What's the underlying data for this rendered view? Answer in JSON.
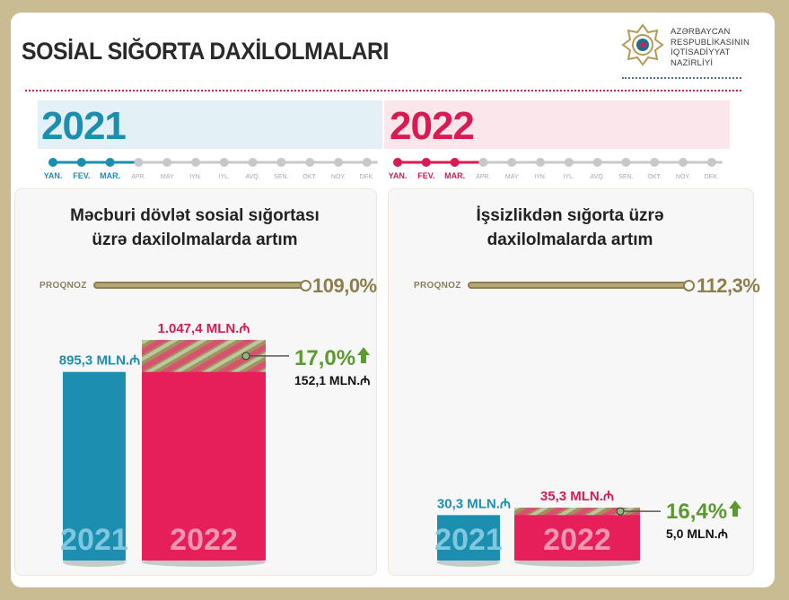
{
  "header": {
    "title": "SOSİAL SIĞORTA DAXİLOLMALARI",
    "ministry_line1": "AZƏRBAYCAN",
    "ministry_line2": "RESPUBLİKASININ",
    "ministry_line3": "İQTİSADİYYAT",
    "ministry_line4": "NAZİRLİYİ",
    "logo_icon": "ministry-emblem-icon"
  },
  "timeline": {
    "year1": "2021",
    "year2": "2022",
    "months": [
      "YAN.",
      "FEV.",
      "MAR.",
      "APR.",
      "MAY",
      "IYN.",
      "IYL.",
      "AVQ.",
      "SEN.",
      "OKT.",
      "NOY.",
      "DEK."
    ],
    "active_months": 3,
    "color_2021": "#1c8fb0",
    "color_2022": "#d81b53",
    "inactive_color": "#c8c8c8"
  },
  "panels": [
    {
      "title_line1": "Məcburi dövlət sosial sığortası",
      "title_line2": "üzrə daxilolmalarda artım",
      "proqnoz_label": "PROQNOZ",
      "proqnoz_value": "109,0%"
    },
    {
      "title_line1": "İşsizlikdən sığorta üzrə",
      "title_line2": "daxilolmalarda artım",
      "proqnoz_label": "PROQNOZ",
      "proqnoz_value": "112,3%"
    }
  ],
  "chart_data": [
    {
      "type": "bar",
      "title": "Məcburi dövlət sosial sığortası üzrə daxilolmalarda artım",
      "categories": [
        "2021",
        "2022"
      ],
      "values": [
        895.3,
        1047.4
      ],
      "value_labels": [
        "895,3 MLN.₼",
        "1.047,4 MLN.₼"
      ],
      "increase_value": 152.1,
      "increase_label": "152,1 MLN.₼",
      "growth_percent_label": "17,0%",
      "proqnoz": "109,0%",
      "colors": [
        "#1c8fb0",
        "#e61e5a"
      ]
    },
    {
      "type": "bar",
      "title": "İşsizlikdən sığorta üzrə daxilolmalarda artım",
      "categories": [
        "2021",
        "2022"
      ],
      "values": [
        30.3,
        35.3
      ],
      "value_labels": [
        "30,3 MLN.₼",
        "35,3 MLN.₼"
      ],
      "increase_value": 5.0,
      "increase_label": "5,0 MLN.₼",
      "growth_percent_label": "16,4%",
      "proqnoz": "112,3%",
      "colors": [
        "#1c8fb0",
        "#e61e5a"
      ]
    }
  ]
}
